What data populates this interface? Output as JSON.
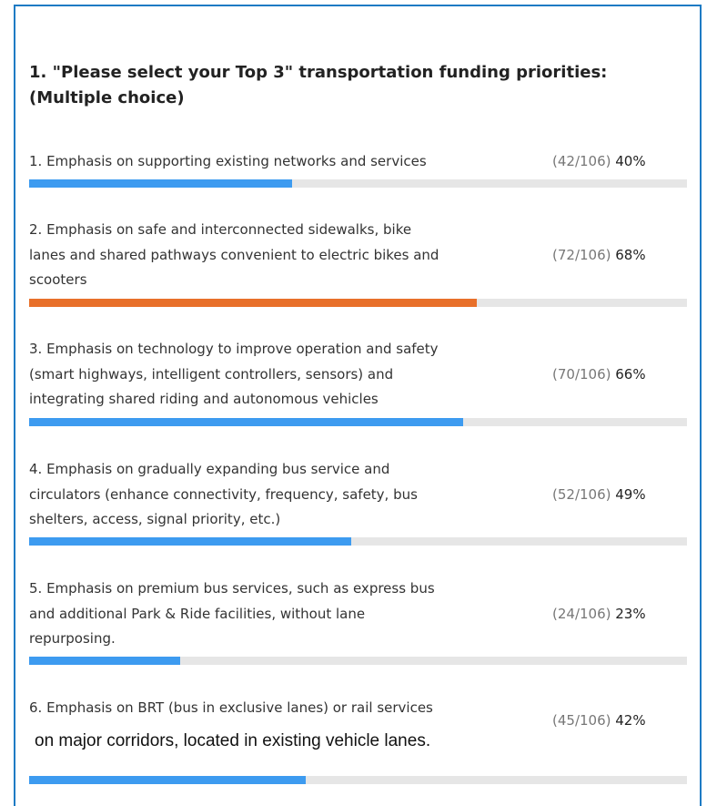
{
  "question": {
    "title": "1. \"Please select your Top 3\" transportation funding priorities: (Multiple choice)"
  },
  "options": [
    {
      "lines": [
        "1. Emphasis on supporting existing networks and services"
      ],
      "count": "(42/106)",
      "percent": 40,
      "percent_label": "40%",
      "color": "#3d9bf0"
    },
    {
      "lines": [
        "2. Emphasis on safe and interconnected sidewalks, bike",
        "lanes and shared pathways convenient to electric bikes and",
        "scooters"
      ],
      "count": "(72/106)",
      "percent": 68,
      "percent_label": "68%",
      "color": "#e8702a"
    },
    {
      "lines": [
        "3. Emphasis on technology to improve operation and safety",
        "(smart highways, intelligent controllers, sensors) and",
        "integrating shared riding and autonomous vehicles"
      ],
      "count": "(70/106)",
      "percent": 66,
      "percent_label": "66%",
      "color": "#3d9bf0"
    },
    {
      "lines": [
        "4. Emphasis on gradually expanding bus service and",
        "circulators (enhance connectivity, frequency, safety, bus",
        "shelters, access, signal priority, etc.)"
      ],
      "count": "(52/106)",
      "percent": 49,
      "percent_label": "49%",
      "color": "#3d9bf0"
    },
    {
      "lines": [
        "5. Emphasis on premium bus services, such as express bus",
        "and additional Park & Ride facilities, without lane",
        "repurposing."
      ],
      "count": "(24/106)",
      "percent": 23,
      "percent_label": "23%",
      "color": "#3d9bf0"
    },
    {
      "lines": [
        "6. Emphasis on BRT (bus in exclusive lanes) or rail services",
        "on major corridors, located in existing vehicle lanes."
      ],
      "count": "(45/106)",
      "percent": 42,
      "percent_label": "42%",
      "color": "#3d9bf0"
    }
  ]
}
